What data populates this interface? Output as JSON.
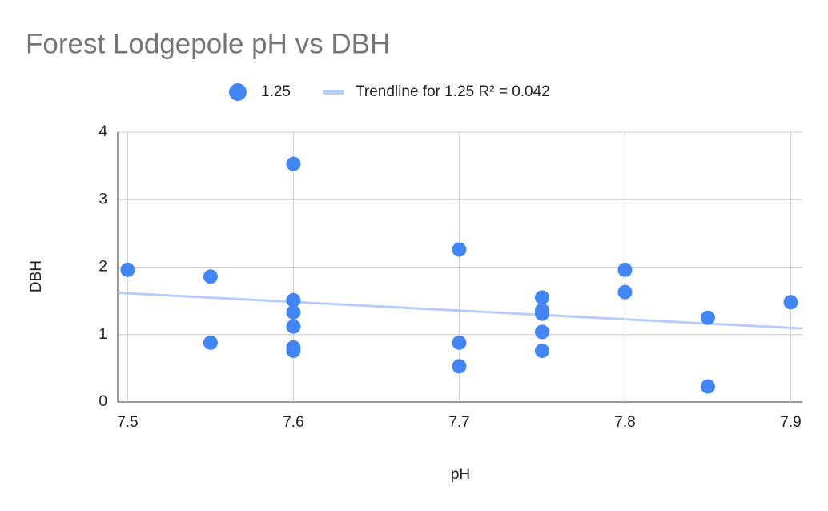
{
  "chart_data": {
    "type": "scatter",
    "title": "Forest Lodgepole pH vs DBH",
    "x_label": "pH",
    "y_label": "DBH",
    "series": [
      {
        "name": "1.25",
        "color": "#4285f4",
        "x": [
          7.5,
          7.55,
          7.55,
          7.6,
          7.6,
          7.6,
          7.6,
          7.6,
          7.6,
          7.7,
          7.7,
          7.7,
          7.75,
          7.75,
          7.75,
          7.75,
          7.75,
          7.8,
          7.8,
          7.85,
          7.85,
          7.9
        ],
        "values": [
          1.96,
          1.86,
          0.88,
          3.53,
          1.51,
          1.33,
          1.12,
          0.81,
          0.76,
          2.26,
          0.88,
          0.53,
          1.55,
          1.36,
          1.31,
          1.04,
          0.76,
          1.96,
          1.63,
          1.25,
          0.23,
          1.48
        ]
      }
    ],
    "trendline": {
      "name": "Trendline for 1.25 R² = 0.042",
      "color": "#b6cdf7",
      "x": [
        7.494,
        7.907
      ],
      "values": [
        1.62,
        1.09
      ]
    },
    "xlim": [
      7.494,
      7.907
    ],
    "xticks": [
      7.5,
      7.6,
      7.7,
      7.8,
      7.9
    ],
    "ylim": [
      0,
      4
    ],
    "yticks": [
      0,
      1,
      2,
      3,
      4
    ],
    "grid": true,
    "legend": "top"
  }
}
